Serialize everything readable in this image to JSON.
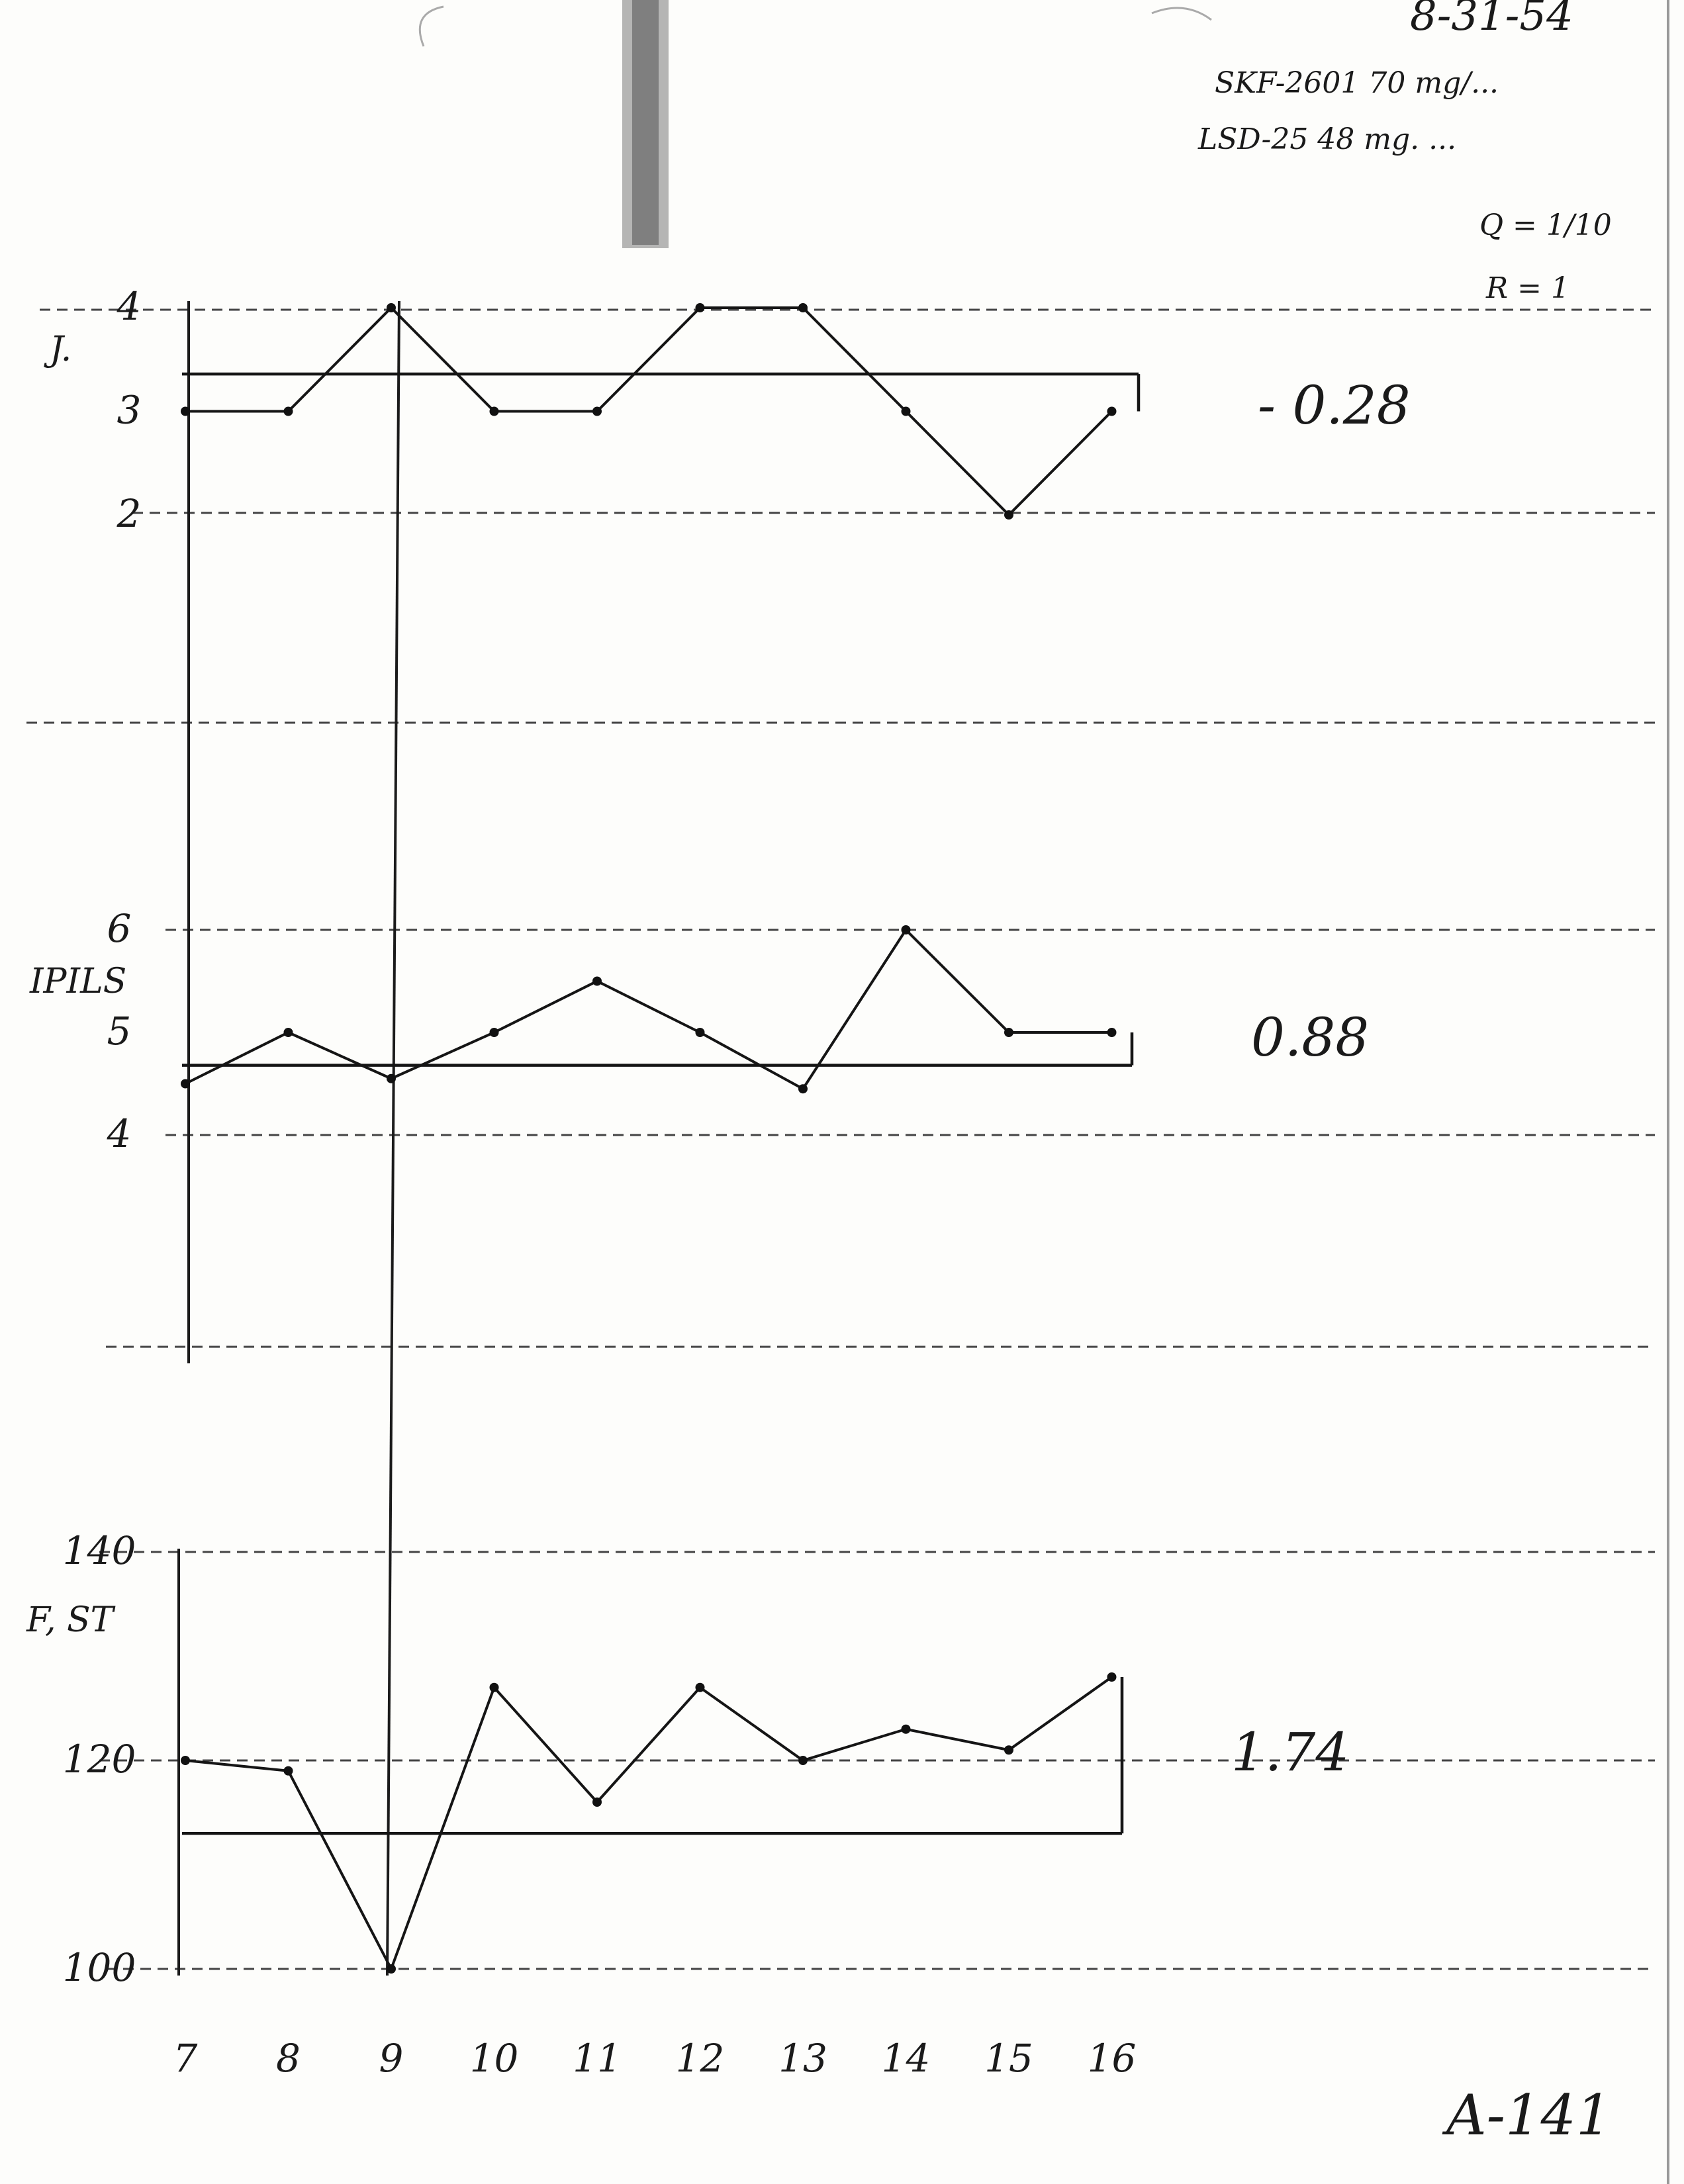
{
  "header": {
    "date": "8-31-54",
    "drug_line_1": "SKF-2601 70 mg/...",
    "drug_line_2": "LSD-25 48 mg. ...",
    "q_value": "Q = 1/10",
    "r_value": "R = 1"
  },
  "page_id": "A-141",
  "chart_data": [
    {
      "type": "line",
      "label": "J.",
      "x": [
        7,
        8,
        9,
        10,
        11,
        12,
        13,
        14,
        15,
        16
      ],
      "values": [
        3,
        3,
        4,
        3,
        3,
        4,
        4,
        3,
        2,
        3
      ],
      "ylim": [
        2,
        4
      ],
      "yticks": [
        "2",
        "3",
        "4"
      ],
      "baseline": 3.36,
      "value_label": "- 0.28"
    },
    {
      "type": "line",
      "label": "IPILS",
      "x": [
        7,
        8,
        9,
        10,
        11,
        12,
        13,
        14,
        15,
        16
      ],
      "values": [
        4.5,
        5,
        4.55,
        5,
        5.5,
        5,
        4.45,
        6,
        5,
        5
      ],
      "ylim": [
        4,
        6
      ],
      "yticks": [
        "4",
        "5",
        "6"
      ],
      "baseline": 4.68,
      "value_label": "0.88"
    },
    {
      "type": "line",
      "label": "F, ST",
      "x": [
        7,
        8,
        9,
        10,
        11,
        12,
        13,
        14,
        15,
        16
      ],
      "values": [
        120,
        119,
        100,
        127,
        116,
        127,
        120,
        123,
        121,
        128
      ],
      "ylim": [
        100,
        140
      ],
      "yticks": [
        "100",
        "120",
        "140"
      ],
      "baseline": 113,
      "value_label": "1.74"
    }
  ],
  "x_axis": {
    "ticks": [
      "7",
      "8",
      "9",
      "10",
      "11",
      "12",
      "13",
      "14",
      "15",
      "16"
    ]
  }
}
